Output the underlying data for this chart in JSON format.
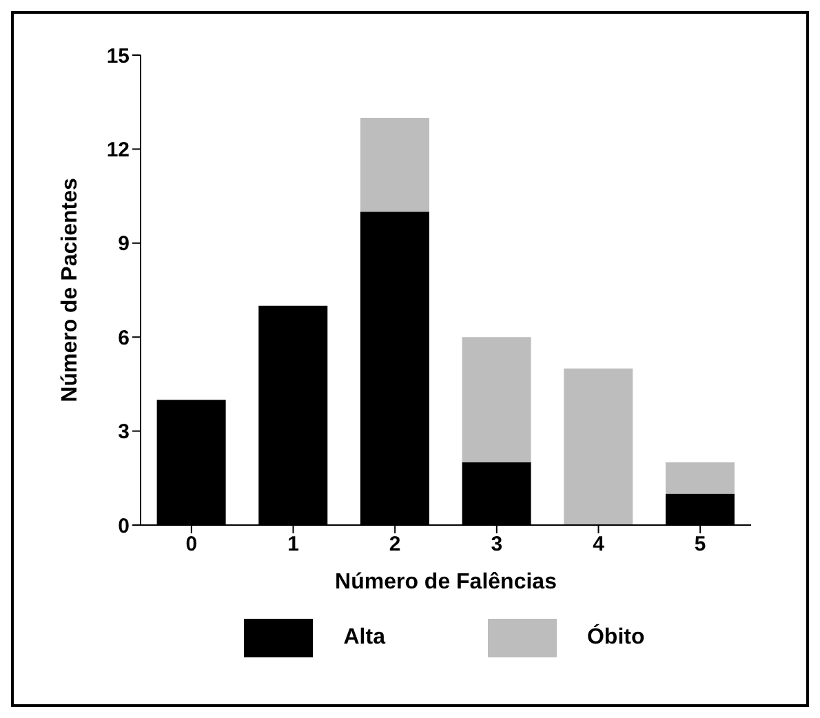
{
  "chart_data": {
    "type": "bar",
    "stacked": true,
    "xlabel": "Número de Falências",
    "ylabel": "Número de Pacientes",
    "categories": [
      "0",
      "1",
      "2",
      "3",
      "4",
      "5"
    ],
    "series": [
      {
        "name": "Alta",
        "color": "#000000",
        "values": [
          4,
          7,
          10,
          2,
          0,
          1
        ]
      },
      {
        "name": "Óbito",
        "color": "#bdbdbd",
        "values": [
          0,
          0,
          3,
          4,
          5,
          1
        ]
      }
    ],
    "ylim": [
      0,
      15
    ],
    "yticks": [
      0,
      3,
      6,
      9,
      12,
      15
    ],
    "grid": false,
    "legend": "bottom"
  }
}
